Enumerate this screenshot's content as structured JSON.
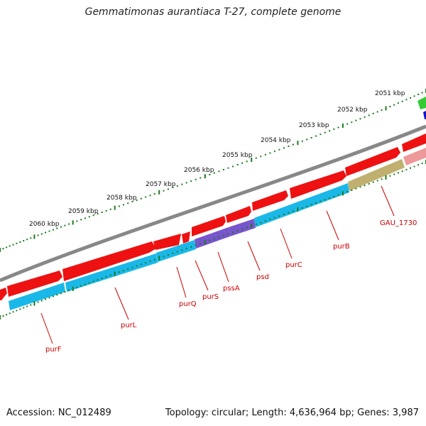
{
  "title": "Gemmatimonas aurantiaca T-27, complete genome",
  "footer": {
    "accession": "Accession: NC_012489",
    "topology": "Topology: circular; Length: 4,636,964 bp; Genes: 3,987"
  },
  "colors": {
    "backbone": "#888888",
    "forward_gene": "#ee1111",
    "reverse_gene": "#1ab8e8",
    "reverse_gene_alt": "#7755cc",
    "other_gene": "#c0b070",
    "pseudo_gene": "#ee9999",
    "ticks": "#1a7a1a",
    "label": "#cc0000"
  },
  "kbp_labels": [
    "2051 kbp",
    "2052 kbp",
    "2053 kbp",
    "2054 kbp",
    "2055 kbp",
    "2056 kbp",
    "2057 kbp",
    "2058 kbp",
    "2059 kbp",
    "2060 kbp"
  ],
  "gene_labels": [
    "purF",
    "purL",
    "purQ",
    "purS",
    "pssA",
    "psd",
    "purC",
    "purB",
    "GAU_1730"
  ]
}
